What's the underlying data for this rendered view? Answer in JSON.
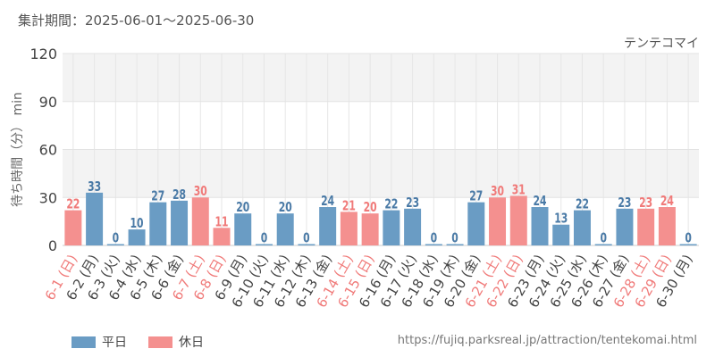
{
  "period_label": "集計期間：2025-06-01～2025-06-30",
  "source_url": "https://fujiq.parksreal.jp/attraction/tentekomai.html",
  "chart_data": {
    "type": "bar",
    "title": "テンテコマイ",
    "ylabel": "待ち時間（分） min",
    "ylim": [
      0,
      120
    ],
    "yticks": [
      0,
      30,
      60,
      90,
      120
    ],
    "grid": true,
    "legend_position": "bottom-left",
    "legend": [
      {
        "label": "平日",
        "color": "#6a9cc4"
      },
      {
        "label": "休日",
        "color": "#f4908f"
      }
    ],
    "categories": [
      "6-1 (日)",
      "6-2 (月)",
      "6-3 (火)",
      "6-4 (水)",
      "6-5 (木)",
      "6-6 (金)",
      "6-7 (土)",
      "6-8 (日)",
      "6-9 (月)",
      "6-10 (火)",
      "6-11 (水)",
      "6-12 (木)",
      "6-13 (金)",
      "6-14 (土)",
      "6-15 (日)",
      "6-16 (月)",
      "6-17 (火)",
      "6-18 (水)",
      "6-19 (木)",
      "6-20 (金)",
      "6-21 (土)",
      "6-22 (日)",
      "6-23 (月)",
      "6-24 (火)",
      "6-25 (水)",
      "6-26 (木)",
      "6-27 (金)",
      "6-28 (土)",
      "6-29 (日)",
      "6-30 (月)"
    ],
    "values": [
      22,
      33,
      0,
      10,
      27,
      28,
      30,
      11,
      20,
      0,
      20,
      0,
      24,
      21,
      20,
      22,
      23,
      0,
      0,
      27,
      30,
      31,
      24,
      13,
      22,
      0,
      23,
      23,
      24,
      0
    ],
    "holiday": [
      true,
      false,
      false,
      false,
      false,
      false,
      true,
      true,
      false,
      false,
      false,
      false,
      false,
      true,
      true,
      false,
      false,
      false,
      false,
      false,
      true,
      true,
      false,
      false,
      false,
      false,
      false,
      true,
      true,
      false
    ],
    "colors": {
      "weekday": "#6a9cc4",
      "holiday": "#f4908f",
      "weekday_label": "#4a7aa6",
      "holiday_label": "#f07a79"
    }
  }
}
